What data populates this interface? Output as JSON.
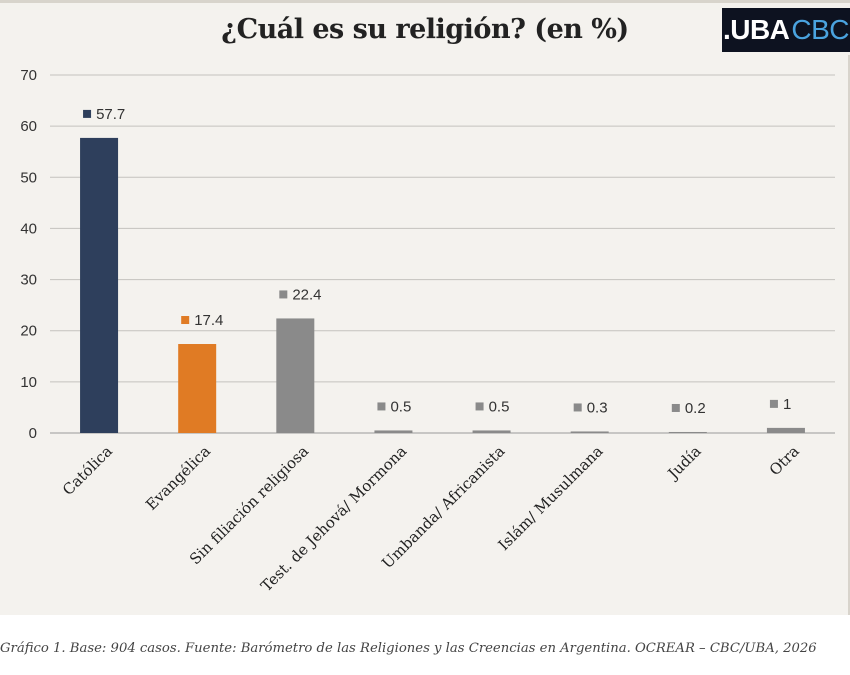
{
  "logo": {
    "part1": ".UBA",
    "part2": "CBC"
  },
  "caption": "Gráfico 1. Base: 904 casos. Fuente: Barómetro de las Religiones y las Creencias en Argentina. OCREAR – CBC/UBA, 2026",
  "chart_data": {
    "type": "bar",
    "title": "¿Cuál es su religión? (en %)",
    "categories": [
      "Católica",
      "Evangélica",
      "Sin filiación religiosa",
      "Test. de Jehová/ Mormona",
      "Umbanda/ Africanista",
      "Islám/ Musulmana",
      "Judía",
      "Otra"
    ],
    "values": [
      57.7,
      17.4,
      22.4,
      0.5,
      0.5,
      0.3,
      0.2,
      1
    ],
    "value_labels": [
      "57.7",
      "17.4",
      "22.4",
      "0.5",
      "0.5",
      "0.3",
      "0.2",
      "1"
    ],
    "colors": [
      "#2e3f5c",
      "#e07b24",
      "#8a8a8a",
      "#8a8a8a",
      "#8a8a8a",
      "#8a8a8a",
      "#8a8a8a",
      "#8a8a8a"
    ],
    "ylim": [
      0,
      70
    ],
    "yticks": [
      0,
      10,
      20,
      30,
      40,
      50,
      60,
      70
    ],
    "grid": true,
    "xlabel": "",
    "ylabel": ""
  }
}
